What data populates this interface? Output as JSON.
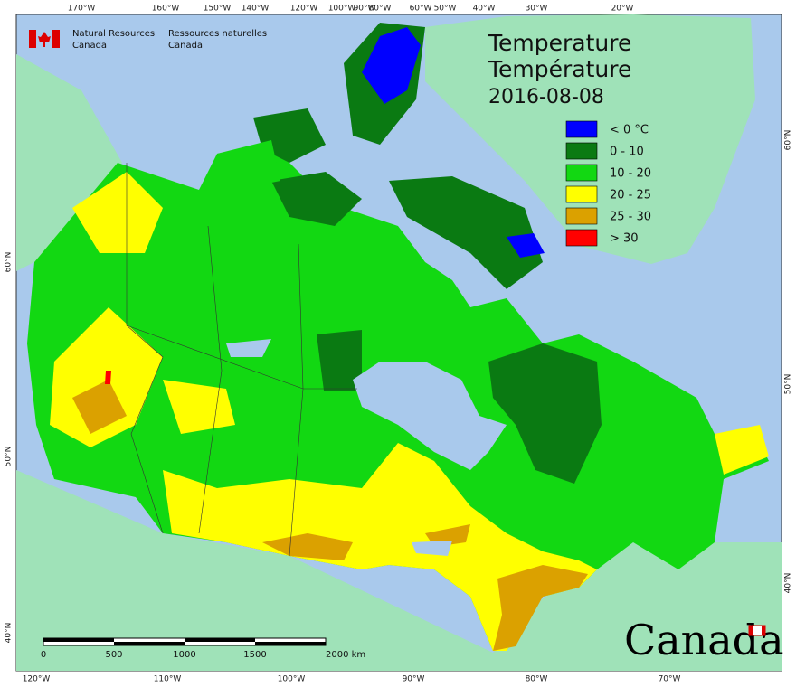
{
  "agency": {
    "en": [
      "Natural Resources",
      "Canada"
    ],
    "fr": [
      "Ressources naturelles",
      "Canada"
    ]
  },
  "title": [
    "Temperature",
    "Température"
  ],
  "date": "2016-08-08",
  "legend": [
    {
      "label": "< 0 °C",
      "color": "#0000ff"
    },
    {
      "label": "0 - 10",
      "color": "#0a7a12"
    },
    {
      "label": "10 - 20",
      "color": "#12d812"
    },
    {
      "label": "20 - 25",
      "color": "#ffff00"
    },
    {
      "label": "25 - 30",
      "color": "#dba100"
    },
    {
      "label": "> 30",
      "color": "#ff0000"
    }
  ],
  "graticule": {
    "top": [
      "170°W",
      "160°W",
      "150°W",
      "140°W",
      "120°W",
      "100°W",
      "90°W",
      "80°W",
      "60°W",
      "50°W",
      "40°W",
      "30°W",
      "20°W"
    ],
    "bottom": [
      "120°W",
      "110°W",
      "100°W",
      "90°W",
      "80°W",
      "70°W"
    ],
    "left": [
      "60°N",
      "50°N",
      "40°N"
    ],
    "right": [
      "60°N",
      "50°N",
      "40°N"
    ]
  },
  "scale_bar": [
    "0",
    "500",
    "1000",
    "1500",
    "2000 km"
  ],
  "wordmark": "Canada"
}
